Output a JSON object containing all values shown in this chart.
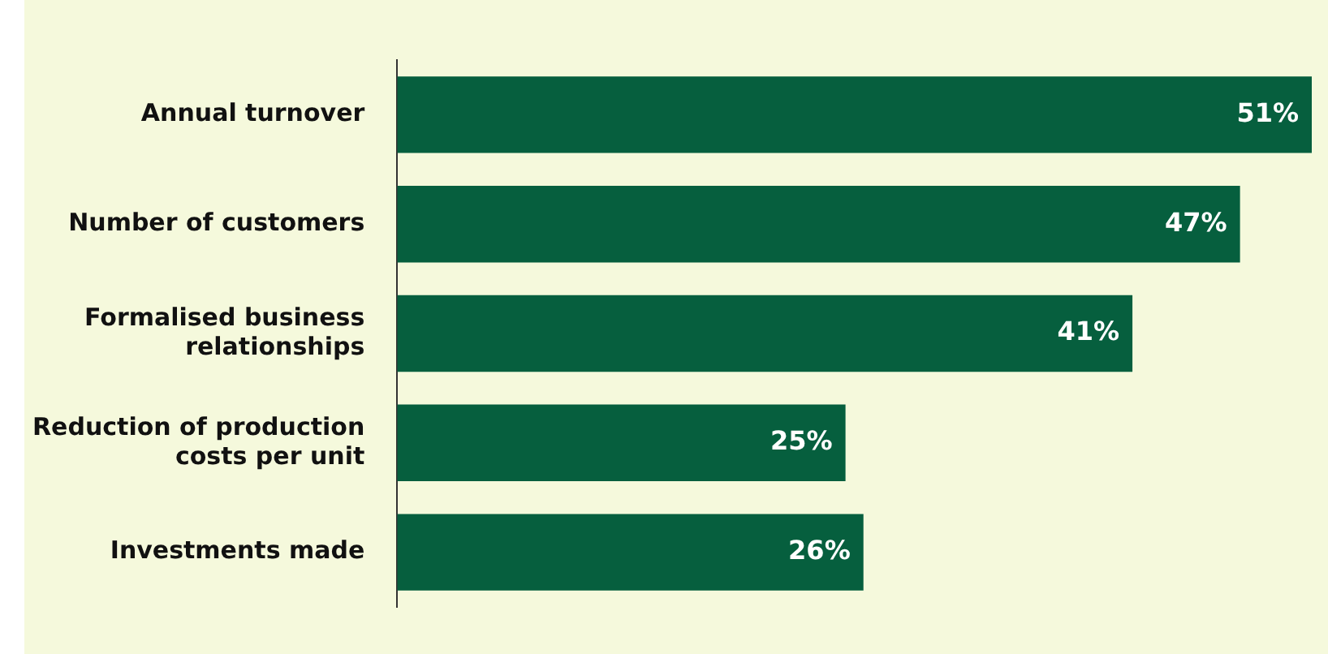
{
  "chart_data": {
    "type": "bar",
    "orientation": "horizontal",
    "categories": [
      "Annual turnover",
      "Number of customers",
      "Formalised business relationships",
      "Reduction of production costs per unit",
      "Investments made"
    ],
    "values": [
      51,
      47,
      41,
      25,
      26
    ],
    "value_labels": [
      "51%",
      "47%",
      "41%",
      "25%",
      "26%"
    ],
    "color": "#065f3e",
    "xlim": [
      0,
      51
    ],
    "legend": false
  }
}
